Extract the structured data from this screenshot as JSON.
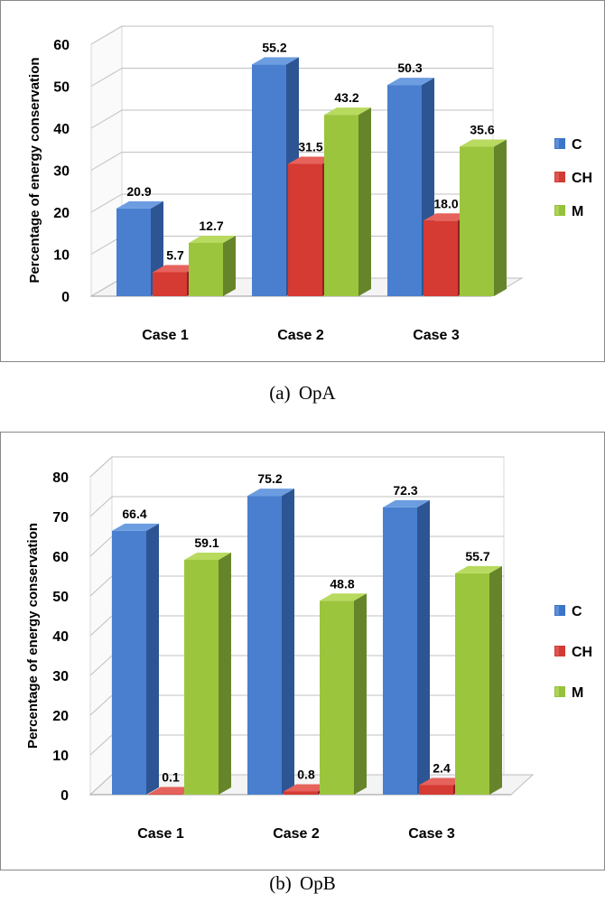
{
  "colors": {
    "C": {
      "front": "#4a7fcf",
      "side": "#2d5594",
      "top": "#6c9de0",
      "swatch": "#3b74c9"
    },
    "CH": {
      "front": "#d53a33",
      "side": "#8e2320",
      "top": "#e6625c",
      "swatch": "#d13b35"
    },
    "M": {
      "front": "#9cc53e",
      "side": "#66852a",
      "top": "#b7da5f",
      "swatch": "#95c13c"
    },
    "wall": "#ffffff",
    "gridline": "#c0c0c0",
    "floor": "#f4f4f4",
    "axis_text": "#000000"
  },
  "charts": [
    {
      "id": "a",
      "caption": {
        "label": "(a)",
        "name": "OpA"
      },
      "chart_data": {
        "type": "bar",
        "title": "",
        "xlabel": "",
        "ylabel": "Percentage of energy conservation",
        "ylim": [
          0,
          60
        ],
        "yticks": [
          "0",
          "10",
          "20",
          "30",
          "40",
          "50",
          "60"
        ],
        "categories": [
          "Case 1",
          "Case 2",
          "Case 3"
        ],
        "series": [
          {
            "name": "C",
            "values": [
              20.9,
              55.2,
              50.3
            ],
            "labels": [
              "20.9",
              "55.2",
              "50.3"
            ]
          },
          {
            "name": "CH",
            "values": [
              5.7,
              31.5,
              18.0
            ],
            "labels": [
              "5.7",
              "31.5",
              "18.0"
            ]
          },
          {
            "name": "M",
            "values": [
              12.7,
              43.2,
              35.6
            ],
            "labels": [
              "12.7",
              "43.2",
              "35.6"
            ]
          }
        ],
        "legend": "right"
      }
    },
    {
      "id": "b",
      "caption": {
        "label": "(b)",
        "name": "OpB"
      },
      "chart_data": {
        "type": "bar",
        "title": "",
        "xlabel": "",
        "ylabel": "Percentage of energy conservation",
        "ylim": [
          0,
          80
        ],
        "yticks": [
          "0",
          "10",
          "20",
          "30",
          "40",
          "50",
          "60",
          "70",
          "80"
        ],
        "categories": [
          "Case 1",
          "Case 2",
          "Case 3"
        ],
        "series": [
          {
            "name": "C",
            "values": [
              66.4,
              75.2,
              72.3
            ],
            "labels": [
              "66.4",
              "75.2",
              "72.3"
            ]
          },
          {
            "name": "CH",
            "values": [
              0.1,
              0.8,
              2.4
            ],
            "labels": [
              "0.1",
              "0.8",
              "2.4"
            ]
          },
          {
            "name": "M",
            "values": [
              59.1,
              48.8,
              55.7
            ],
            "labels": [
              "59.1",
              "48.8",
              "55.7"
            ]
          }
        ],
        "legend": "right"
      }
    }
  ]
}
